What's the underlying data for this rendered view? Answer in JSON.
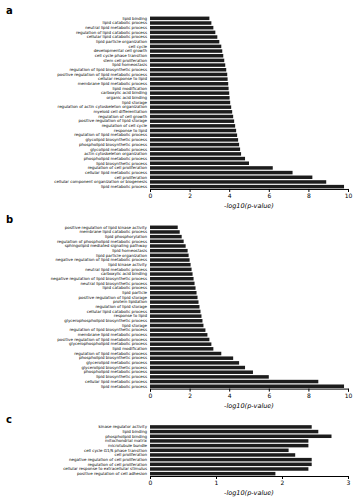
{
  "chart_data": [
    {
      "type": "bar",
      "orientation": "horizontal",
      "title": "a",
      "categories": [
        "lipid binding",
        "lipid catabolic process",
        "neutral lipid metabolic process",
        "regulation of lipid catabolic process",
        "cellular lipid catabolic process",
        "lipid particle organization",
        "cell cycle",
        "developmental cell growth",
        "cell cycle phase transition",
        "stem cell proliferation",
        "lipid homeostasis",
        "regulation of lipid biosynthetic process",
        "positive regulation of lipid metabolic process",
        "cellular response to lipid",
        "membrane lipid metabolic process",
        "lipid modification",
        "carboxylic acid binding",
        "organic acid binding",
        "lipid storage",
        "regulation of actin cytoskeleton organization",
        "myeloid cell differentiation",
        "regulation of cell growth",
        "positive regulation of lipid storage",
        "regulation of cell cycle",
        "response to lipid",
        "regulation of lipid metabolic process",
        "glycolipid biosynthetic process",
        "phospholipid biosynthetic process",
        "glycolipid metabolic process",
        "actin cytoskeleton organization",
        "phospholipid metabolic process",
        "lipid biosynthetic process",
        "regulation of cell proliferation",
        "cellular lipid metabolic process",
        "cell proliferation",
        "cellular component organization or biogenesis",
        "lipid metabolic process"
      ],
      "values": [
        3.0,
        3.1,
        3.2,
        3.3,
        3.4,
        3.5,
        3.6,
        3.65,
        3.7,
        3.75,
        3.8,
        3.85,
        3.9,
        3.92,
        3.95,
        3.97,
        4.0,
        4.02,
        4.05,
        4.1,
        4.15,
        4.2,
        4.25,
        4.3,
        4.35,
        4.4,
        4.45,
        4.5,
        4.55,
        4.6,
        4.8,
        5.0,
        6.2,
        7.2,
        8.2,
        8.9,
        9.8
      ],
      "xlabel": "-log10(p-value)",
      "xlim": [
        0,
        10
      ],
      "xticks": [
        0,
        2,
        4,
        6,
        8,
        10
      ],
      "color": "#1c1c1c",
      "grid": false
    },
    {
      "type": "bar",
      "orientation": "horizontal",
      "title": "b",
      "categories": [
        "positive regulation of lipid kinase activity",
        "membrane lipid catabolic process",
        "lipid phosphorylation",
        "regulation of phospholipid metabolic process",
        "sphingolipid mediated signaling pathway",
        "lipid homeostasis",
        "lipid particle organization",
        "negative regulation of lipid metabolic process",
        "lipid kinase activity",
        "neutral lipid metabolic process",
        "carboxylic acid binding",
        "negative regulation of lipid biosynthetic process",
        "neutral lipid biosynthetic process",
        "lipid catabolic process",
        "lipid particle",
        "positive regulation of lipid storage",
        "protein lipidation",
        "regulation of lipid storage",
        "cellular lipid catabolic process",
        "response to lipid",
        "glycerophospholipid biosynthetic process",
        "lipid storage",
        "regulation of lipid biosynthetic process",
        "membrane lipid metabolic process",
        "positive regulation of lipid metabolic process",
        "glycerophospholipid metabolic process",
        "lipid modification",
        "regulation of lipid metabolic process",
        "phospholipid biosynthetic process",
        "glycerolipid metabolic process",
        "glycerolipid biosynthetic process",
        "phospholipid metabolic process",
        "lipid biosynthetic process",
        "cellular lipid metabolic process",
        "lipid metabolic process"
      ],
      "values": [
        1.4,
        1.5,
        1.6,
        1.7,
        1.8,
        1.9,
        1.95,
        2.0,
        2.05,
        2.1,
        2.15,
        2.2,
        2.25,
        2.3,
        2.35,
        2.4,
        2.45,
        2.5,
        2.55,
        2.6,
        2.65,
        2.7,
        2.8,
        2.9,
        3.0,
        3.1,
        3.2,
        3.6,
        4.2,
        4.5,
        4.8,
        5.2,
        6.0,
        8.5,
        9.8
      ],
      "xlabel": "-log10(p-value)",
      "xlim": [
        0,
        10
      ],
      "xticks": [
        0,
        2,
        4,
        6,
        8,
        10
      ],
      "color": "#1c1c1c",
      "grid": false
    },
    {
      "type": "bar",
      "orientation": "horizontal",
      "title": "c",
      "categories": [
        "kinase regulator activity",
        "lipid binding",
        "phospholipid binding",
        "mitochondrial matrix",
        "microtubule bundle",
        "cell cycle G1/S phase transition",
        "cell proliferation",
        "negative regulation of cell proliferation",
        "regulation of cell proliferation",
        "cellular response to extracellular stimulus",
        "positive regulation of cell adhesion"
      ],
      "values": [
        2.45,
        2.55,
        2.75,
        2.4,
        2.4,
        2.1,
        2.2,
        2.45,
        2.45,
        2.4,
        1.9
      ],
      "xlabel": "-log10(p-value)",
      "xlim": [
        0,
        3
      ],
      "xticks": [
        0,
        1,
        2,
        3
      ],
      "color": "#1c1c1c",
      "grid": false
    }
  ]
}
